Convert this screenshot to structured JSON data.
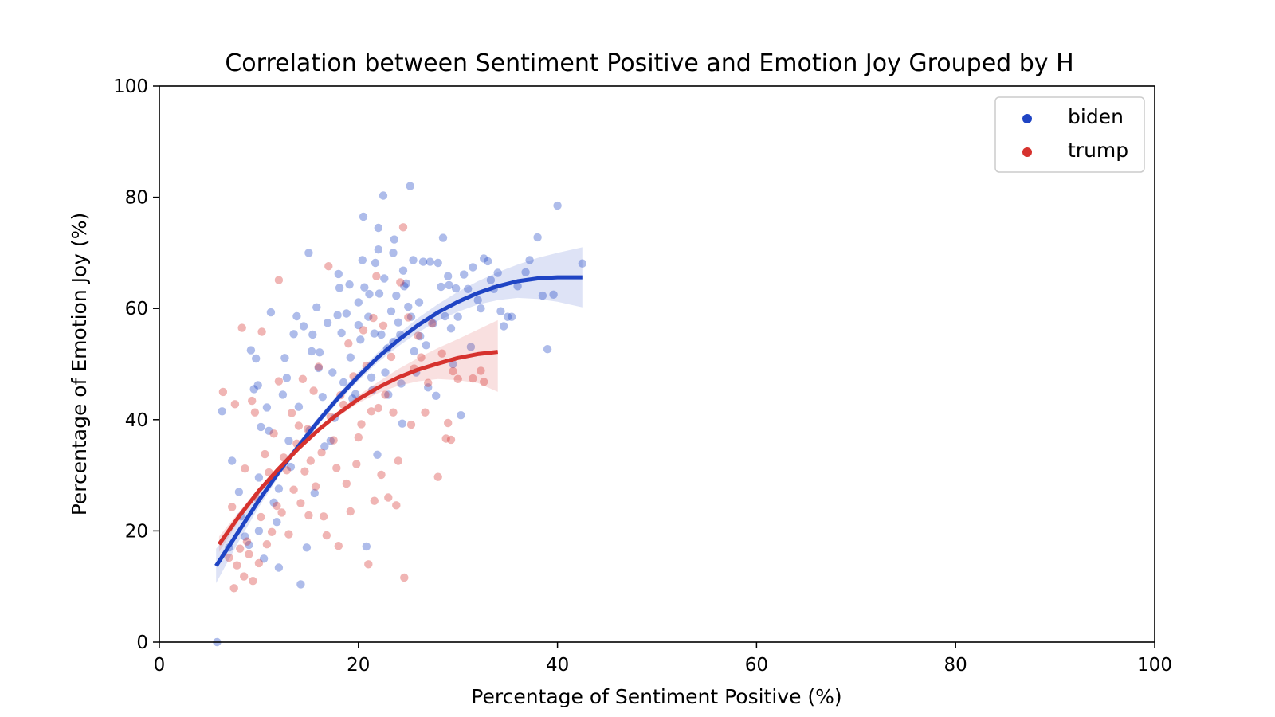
{
  "chart_data": {
    "type": "scatter",
    "title": "Correlation between Sentiment Positive and Emotion Joy Grouped by H",
    "xlabel": "Percentage of Sentiment Positive (%)",
    "ylabel": "Percentage of Emotion Joy (%)",
    "xlim": [
      0,
      100
    ],
    "ylim": [
      0,
      100
    ],
    "xticks": [
      "0",
      "20",
      "40",
      "60",
      "80",
      "100"
    ],
    "yticks": [
      "0",
      "20",
      "40",
      "60",
      "80",
      "100"
    ],
    "grid": false,
    "legend_position": "top-right",
    "series": [
      {
        "name": "biden",
        "color": "#1f44c4",
        "trend": [
          [
            5.7,
            13.7
          ],
          [
            8,
            20
          ],
          [
            10,
            25.5
          ],
          [
            12,
            30.6
          ],
          [
            14,
            35.3
          ],
          [
            16,
            39.8
          ],
          [
            18,
            44
          ],
          [
            20,
            47.8
          ],
          [
            22,
            51.3
          ],
          [
            24,
            54.3
          ],
          [
            26,
            57
          ],
          [
            28,
            59.3
          ],
          [
            30,
            61.2
          ],
          [
            32,
            62.8
          ],
          [
            34,
            64
          ],
          [
            36,
            64.9
          ],
          [
            38,
            65.4
          ],
          [
            40,
            65.6
          ],
          [
            42.5,
            65.6
          ]
        ],
        "band": [
          [
            5.7,
            10.6,
            16.8
          ],
          [
            8,
            18.2,
            21.8
          ],
          [
            10,
            24.3,
            26.7
          ],
          [
            12,
            29.8,
            31.4
          ],
          [
            14,
            34.6,
            36
          ],
          [
            16,
            39.1,
            40.5
          ],
          [
            18,
            43.3,
            44.7
          ],
          [
            20,
            47,
            48.6
          ],
          [
            22,
            50.4,
            52.2
          ],
          [
            24,
            53.2,
            55.4
          ],
          [
            26,
            55.7,
            58.3
          ],
          [
            28,
            57.8,
            60.8
          ],
          [
            30,
            59.4,
            63
          ],
          [
            32,
            60.7,
            64.9
          ],
          [
            34,
            61.5,
            66.5
          ],
          [
            36,
            61.9,
            67.9
          ],
          [
            38,
            61.7,
            69.1
          ],
          [
            40,
            61.2,
            70
          ],
          [
            42.5,
            60.2,
            71
          ]
        ],
        "points": [
          [
            5.8,
            0
          ],
          [
            6.3,
            41.5
          ],
          [
            7,
            17
          ],
          [
            7.3,
            32.6
          ],
          [
            8,
            27
          ],
          [
            8.2,
            22.6
          ],
          [
            8.6,
            19
          ],
          [
            9,
            17.5
          ],
          [
            9.2,
            52.5
          ],
          [
            9.5,
            45.5
          ],
          [
            9.7,
            51
          ],
          [
            9.9,
            46.2
          ],
          [
            10,
            29.6
          ],
          [
            10,
            20
          ],
          [
            10.2,
            38.7
          ],
          [
            10.5,
            15
          ],
          [
            10.8,
            42.2
          ],
          [
            11,
            38
          ],
          [
            11.2,
            59.3
          ],
          [
            11.5,
            25.1
          ],
          [
            11.8,
            21.6
          ],
          [
            12,
            13.4
          ],
          [
            12,
            27.6
          ],
          [
            12.4,
            44.5
          ],
          [
            12.6,
            51.1
          ],
          [
            12.8,
            47.5
          ],
          [
            13,
            36.2
          ],
          [
            13.2,
            31.5
          ],
          [
            13.5,
            55.4
          ],
          [
            13.8,
            58.6
          ],
          [
            14,
            42.3
          ],
          [
            14.2,
            10.4
          ],
          [
            14.5,
            56.8
          ],
          [
            14.8,
            17
          ],
          [
            15,
            70
          ],
          [
            15.1,
            38.1
          ],
          [
            15.3,
            52.3
          ],
          [
            15.4,
            55.3
          ],
          [
            15.6,
            26.8
          ],
          [
            15.8,
            60.2
          ],
          [
            16,
            49.3
          ],
          [
            16.1,
            52.1
          ],
          [
            16.4,
            44.1
          ],
          [
            16.6,
            35.2
          ],
          [
            16.9,
            57.4
          ],
          [
            17.2,
            36.2
          ],
          [
            17.4,
            48.5
          ],
          [
            17.6,
            40.3
          ],
          [
            17.9,
            58.8
          ],
          [
            18,
            66.2
          ],
          [
            18.1,
            63.7
          ],
          [
            18.3,
            55.6
          ],
          [
            18.5,
            46.7
          ],
          [
            18.8,
            59.1
          ],
          [
            19.1,
            64.3
          ],
          [
            19.2,
            51.2
          ],
          [
            19.4,
            43.8
          ],
          [
            19.7,
            44.6
          ],
          [
            20,
            61.1
          ],
          [
            20,
            57
          ],
          [
            20.2,
            54.4
          ],
          [
            20.4,
            68.7
          ],
          [
            20.5,
            76.5
          ],
          [
            20.6,
            63.8
          ],
          [
            20.8,
            17.2
          ],
          [
            21,
            58.5
          ],
          [
            21.1,
            62.6
          ],
          [
            21.3,
            47.6
          ],
          [
            21.4,
            45.3
          ],
          [
            21.6,
            55.5
          ],
          [
            21.7,
            68.2
          ],
          [
            21.9,
            33.7
          ],
          [
            22,
            74.5
          ],
          [
            22,
            70.6
          ],
          [
            22.1,
            62.7
          ],
          [
            22.3,
            55.3
          ],
          [
            22.5,
            80.3
          ],
          [
            22.6,
            65.4
          ],
          [
            22.7,
            48.5
          ],
          [
            22.9,
            52.8
          ],
          [
            23,
            44.5
          ],
          [
            23.3,
            59.5
          ],
          [
            23.5,
            70
          ],
          [
            23.5,
            54
          ],
          [
            23.6,
            72.4
          ],
          [
            23.8,
            62.3
          ],
          [
            24,
            57.5
          ],
          [
            24.2,
            55.3
          ],
          [
            24.3,
            46.5
          ],
          [
            24.4,
            39.3
          ],
          [
            24.5,
            66.8
          ],
          [
            24.6,
            64
          ],
          [
            24.8,
            64.5
          ],
          [
            25,
            60.3
          ],
          [
            25.2,
            82
          ],
          [
            25.3,
            58.5
          ],
          [
            25.5,
            68.7
          ],
          [
            25.6,
            52.3
          ],
          [
            25.8,
            48.5
          ],
          [
            26.1,
            61.1
          ],
          [
            26.2,
            55
          ],
          [
            26.5,
            68.4
          ],
          [
            26.8,
            53.4
          ],
          [
            27,
            45.8
          ],
          [
            27.2,
            68.4
          ],
          [
            27.5,
            57.3
          ],
          [
            27.8,
            44.3
          ],
          [
            28,
            68.2
          ],
          [
            28.3,
            63.9
          ],
          [
            28.5,
            72.7
          ],
          [
            28.7,
            58.6
          ],
          [
            29,
            65.8
          ],
          [
            29.1,
            64.2
          ],
          [
            29.3,
            56.4
          ],
          [
            29.5,
            50
          ],
          [
            29.8,
            63.6
          ],
          [
            30,
            58.5
          ],
          [
            30.3,
            40.8
          ],
          [
            30.6,
            66.1
          ],
          [
            31,
            63.5
          ],
          [
            31.3,
            53.1
          ],
          [
            31.5,
            67.4
          ],
          [
            32,
            61.5
          ],
          [
            32.3,
            60
          ],
          [
            32.6,
            69
          ],
          [
            33,
            68.5
          ],
          [
            33.3,
            65.1
          ],
          [
            33.6,
            63.5
          ],
          [
            34,
            66.4
          ],
          [
            34.3,
            59.5
          ],
          [
            34.6,
            56.8
          ],
          [
            35,
            58.5
          ],
          [
            35.4,
            58.5
          ],
          [
            36,
            64
          ],
          [
            36.8,
            66.5
          ],
          [
            37.2,
            68.7
          ],
          [
            38,
            72.8
          ],
          [
            38.5,
            62.3
          ],
          [
            39,
            52.7
          ],
          [
            39.6,
            62.5
          ],
          [
            40,
            78.5
          ],
          [
            42.5,
            68.1
          ]
        ]
      },
      {
        "name": "trump",
        "color": "#d6322e",
        "trend": [
          [
            6,
            17.6
          ],
          [
            8,
            22.6
          ],
          [
            10,
            27.2
          ],
          [
            12,
            31.2
          ],
          [
            14,
            34.9
          ],
          [
            16,
            38.2
          ],
          [
            18,
            41.1
          ],
          [
            20,
            43.7
          ],
          [
            22,
            45.8
          ],
          [
            24,
            47.6
          ],
          [
            26,
            49
          ],
          [
            28,
            50.1
          ],
          [
            30,
            51.1
          ],
          [
            32,
            51.8
          ],
          [
            34,
            52.2
          ]
        ],
        "band": [
          [
            6,
            16.2,
            19
          ],
          [
            8,
            21.8,
            23.4
          ],
          [
            10,
            26.6,
            27.8
          ],
          [
            12,
            30.7,
            31.7
          ],
          [
            14,
            34.5,
            35.3
          ],
          [
            16,
            37.8,
            38.6
          ],
          [
            18,
            40.6,
            41.6
          ],
          [
            20,
            43,
            44.4
          ],
          [
            22,
            44.8,
            46.8
          ],
          [
            24,
            46.1,
            49.1
          ],
          [
            26,
            46.9,
            51.1
          ],
          [
            28,
            47.3,
            52.9
          ],
          [
            30,
            47.1,
            54.5
          ],
          [
            32,
            46.6,
            56.2
          ],
          [
            34,
            45,
            57.9
          ]
        ],
        "points": [
          [
            6.4,
            45
          ],
          [
            7,
            15.2
          ],
          [
            7.3,
            24.3
          ],
          [
            7.5,
            9.7
          ],
          [
            7.6,
            42.8
          ],
          [
            7.8,
            13.8
          ],
          [
            8.1,
            16.8
          ],
          [
            8.3,
            56.5
          ],
          [
            8.5,
            11.8
          ],
          [
            8.6,
            31.2
          ],
          [
            8.8,
            18.1
          ],
          [
            9,
            15.8
          ],
          [
            9.3,
            43.4
          ],
          [
            9.4,
            11
          ],
          [
            9.6,
            41.3
          ],
          [
            9.7,
            26
          ],
          [
            10,
            14.2
          ],
          [
            10.2,
            22.5
          ],
          [
            10.3,
            55.8
          ],
          [
            10.6,
            33.8
          ],
          [
            10.8,
            17.6
          ],
          [
            11,
            30.5
          ],
          [
            11.3,
            19.8
          ],
          [
            11.5,
            37.5
          ],
          [
            11.8,
            24.5
          ],
          [
            12,
            46.9
          ],
          [
            12,
            65.1
          ],
          [
            12.3,
            23.3
          ],
          [
            12.5,
            33.2
          ],
          [
            12.8,
            30.9
          ],
          [
            13,
            19.4
          ],
          [
            13.3,
            41.2
          ],
          [
            13.5,
            27.4
          ],
          [
            13.8,
            35.7
          ],
          [
            14,
            38.9
          ],
          [
            14.2,
            25
          ],
          [
            14.4,
            47.3
          ],
          [
            14.6,
            30.7
          ],
          [
            14.9,
            38.3
          ],
          [
            15,
            22.8
          ],
          [
            15.2,
            32.6
          ],
          [
            15.5,
            45.2
          ],
          [
            15.7,
            28
          ],
          [
            16,
            49.5
          ],
          [
            16.3,
            34.1
          ],
          [
            16.5,
            22.6
          ],
          [
            16.8,
            19.2
          ],
          [
            17,
            67.6
          ],
          [
            17.2,
            40.5
          ],
          [
            17.5,
            36.3
          ],
          [
            17.8,
            31.3
          ],
          [
            18,
            17.3
          ],
          [
            18.2,
            44.4
          ],
          [
            18.5,
            42.7
          ],
          [
            18.8,
            28.5
          ],
          [
            19,
            53.7
          ],
          [
            19.2,
            23.5
          ],
          [
            19.5,
            47.8
          ],
          [
            19.8,
            32
          ],
          [
            20,
            36.8
          ],
          [
            20.3,
            39.2
          ],
          [
            20.5,
            56.1
          ],
          [
            20.8,
            49.7
          ],
          [
            21,
            14
          ],
          [
            21.3,
            41.5
          ],
          [
            21.5,
            58.3
          ],
          [
            21.6,
            25.4
          ],
          [
            21.8,
            65.8
          ],
          [
            22,
            42.1
          ],
          [
            22.3,
            30.1
          ],
          [
            22.5,
            56.9
          ],
          [
            22.7,
            44.5
          ],
          [
            23,
            26
          ],
          [
            23.3,
            51.3
          ],
          [
            23.5,
            41.3
          ],
          [
            23.8,
            24.6
          ],
          [
            24,
            32.6
          ],
          [
            24.2,
            64.7
          ],
          [
            24.5,
            74.6
          ],
          [
            24.6,
            11.6
          ],
          [
            25,
            58.4
          ],
          [
            25.3,
            39.1
          ],
          [
            25.6,
            49.2
          ],
          [
            26,
            55.1
          ],
          [
            26.3,
            51.2
          ],
          [
            26.7,
            41.3
          ],
          [
            27,
            46.6
          ],
          [
            27.4,
            57.3
          ],
          [
            28,
            29.7
          ],
          [
            28.4,
            51.9
          ],
          [
            28.8,
            36.6
          ],
          [
            29,
            39.4
          ],
          [
            29.3,
            36.4
          ],
          [
            29.5,
            48.7
          ],
          [
            30,
            47.3
          ],
          [
            31.5,
            47.4
          ],
          [
            32.3,
            48.8
          ],
          [
            32.6,
            46.8
          ]
        ]
      }
    ]
  }
}
